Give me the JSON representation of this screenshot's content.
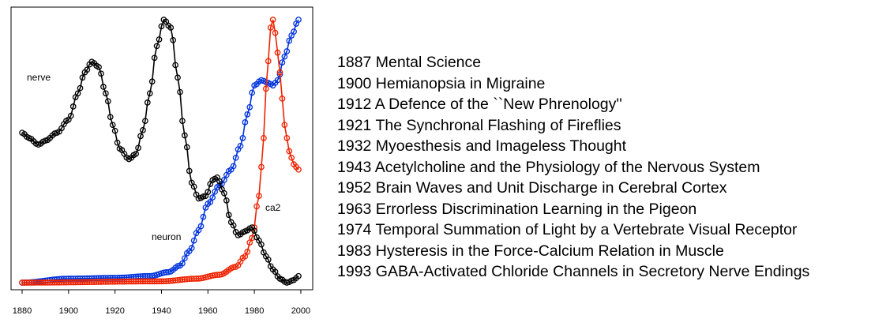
{
  "chart_data": {
    "type": "line",
    "x_range": [
      1880,
      1999
    ],
    "xlim": [
      1875,
      2003
    ],
    "x_ticks": [
      "1880",
      "1900",
      "1920",
      "1940",
      "1960",
      "1980",
      "2000"
    ],
    "y_axis_shown": false,
    "grid": false,
    "marker": "open-circle",
    "series": [
      {
        "name": "nerve",
        "color": "#000000",
        "keypoints": [
          [
            1880,
            0.57
          ],
          [
            1883,
            0.55
          ],
          [
            1887,
            0.525
          ],
          [
            1890,
            0.54
          ],
          [
            1895,
            0.57
          ],
          [
            1900,
            0.62
          ],
          [
            1904,
            0.72
          ],
          [
            1907,
            0.8
          ],
          [
            1910,
            0.84
          ],
          [
            1913,
            0.82
          ],
          [
            1916,
            0.72
          ],
          [
            1919,
            0.6
          ],
          [
            1922,
            0.51
          ],
          [
            1926,
            0.47
          ],
          [
            1929,
            0.49
          ],
          [
            1932,
            0.58
          ],
          [
            1935,
            0.72
          ],
          [
            1938,
            0.9
          ],
          [
            1941,
            1.0
          ],
          [
            1944,
            0.97
          ],
          [
            1947,
            0.78
          ],
          [
            1950,
            0.56
          ],
          [
            1953,
            0.38
          ],
          [
            1956,
            0.32
          ],
          [
            1959,
            0.33
          ],
          [
            1962,
            0.39
          ],
          [
            1964,
            0.4
          ],
          [
            1967,
            0.34
          ],
          [
            1970,
            0.23
          ],
          [
            1973,
            0.18
          ],
          [
            1976,
            0.195
          ],
          [
            1979,
            0.21
          ],
          [
            1982,
            0.16
          ],
          [
            1985,
            0.1
          ],
          [
            1988,
            0.05
          ],
          [
            1991,
            0.015
          ],
          [
            1994,
            0.0
          ],
          [
            1997,
            0.01
          ],
          [
            1999,
            0.025
          ]
        ]
      },
      {
        "name": "neuron",
        "color": "#0033dd",
        "keypoints": [
          [
            1880,
            0.0
          ],
          [
            1900,
            0.015
          ],
          [
            1920,
            0.018
          ],
          [
            1935,
            0.025
          ],
          [
            1943,
            0.04
          ],
          [
            1948,
            0.065
          ],
          [
            1952,
            0.12
          ],
          [
            1956,
            0.2
          ],
          [
            1960,
            0.3
          ],
          [
            1965,
            0.37
          ],
          [
            1970,
            0.43
          ],
          [
            1974,
            0.52
          ],
          [
            1977,
            0.64
          ],
          [
            1980,
            0.75
          ],
          [
            1983,
            0.77
          ],
          [
            1986,
            0.76
          ],
          [
            1988,
            0.75
          ],
          [
            1990,
            0.77
          ],
          [
            1993,
            0.86
          ],
          [
            1996,
            0.94
          ],
          [
            1999,
            1.0
          ]
        ]
      },
      {
        "name": "ca2",
        "color": "#ee2200",
        "keypoints": [
          [
            1880,
            0.0
          ],
          [
            1940,
            0.005
          ],
          [
            1955,
            0.015
          ],
          [
            1965,
            0.03
          ],
          [
            1972,
            0.06
          ],
          [
            1976,
            0.1
          ],
          [
            1979,
            0.17
          ],
          [
            1982,
            0.33
          ],
          [
            1984,
            0.55
          ],
          [
            1985.5,
            0.8
          ],
          [
            1987,
            0.97
          ],
          [
            1988,
            1.0
          ],
          [
            1989,
            0.95
          ],
          [
            1991,
            0.8
          ],
          [
            1993,
            0.6
          ],
          [
            1995,
            0.5
          ],
          [
            1997,
            0.45
          ],
          [
            1999,
            0.43
          ]
        ]
      }
    ],
    "labels": [
      {
        "text": "nerve",
        "series": "nerve"
      },
      {
        "text": "neuron",
        "series": "neuron"
      },
      {
        "text": "ca2",
        "series": "ca2"
      }
    ]
  },
  "titles": [
    "1887 Mental Science",
    "1900 Hemianopsia in Migraine",
    "1912 A Defence of the ``New Phrenology''",
    "1921 The Synchronal Flashing of Fireflies",
    "1932 Myoesthesis and Imageless Thought",
    "1943 Acetylcholine and the Physiology of the Nervous System",
    "1952 Brain Waves and Unit Discharge in Cerebral Cortex",
    "1963 Errorless Discrimination Learning in the Pigeon",
    "1974 Temporal Summation of Light by a Vertebrate Visual Receptor",
    "1983 Hysteresis in the Force-Calcium Relation in Muscle",
    "1993 GABA-Activated Chloride Channels in Secretory Nerve Endings"
  ]
}
